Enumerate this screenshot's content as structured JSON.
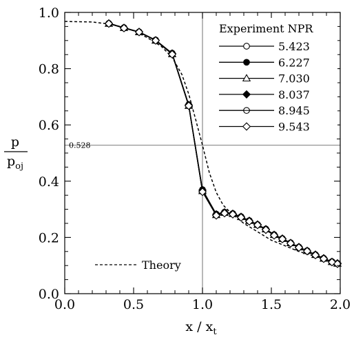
{
  "chart_data": {
    "type": "line",
    "xlabel": "x / x",
    "xlabel_sub": "t",
    "ylabel_numerator": "p",
    "ylabel_denominator": "p",
    "ylabel_denominator_sub": "oj",
    "xlim": [
      0.0,
      2.0
    ],
    "ylim": [
      0.0,
      1.0
    ],
    "x_ticks": [
      0.0,
      0.5,
      1.0,
      1.5,
      2.0
    ],
    "x_tick_labels": [
      "0.0",
      "0.5",
      "1.0",
      "1.5",
      "2.0"
    ],
    "y_ticks": [
      0.0,
      0.2,
      0.4,
      0.6,
      0.8,
      1.0
    ],
    "y_tick_labels": [
      "0.0",
      "0.2",
      "0.4",
      "0.6",
      "0.8",
      "1.0"
    ],
    "grid": false,
    "legend_title": "Experiment NPR",
    "legend_position": "top-right",
    "reference_lines": [
      {
        "orientation": "horizontal",
        "value": 0.528,
        "label": "0.528"
      },
      {
        "orientation": "vertical",
        "value": 1.0,
        "label": ""
      }
    ],
    "theory": {
      "name": "Theory",
      "style": "dashed",
      "x": [
        0.0,
        0.2,
        0.35,
        0.5,
        0.6,
        0.7,
        0.78,
        0.85,
        0.9,
        0.95,
        1.0,
        1.05,
        1.1,
        1.15,
        1.2,
        1.3,
        1.4,
        1.5,
        1.6,
        1.7,
        1.8,
        1.9,
        1.98
      ],
      "y": [
        0.968,
        0.966,
        0.957,
        0.935,
        0.91,
        0.88,
        0.84,
        0.78,
        0.71,
        0.62,
        0.528,
        0.43,
        0.36,
        0.315,
        0.29,
        0.25,
        0.22,
        0.19,
        0.17,
        0.15,
        0.135,
        0.12,
        0.108
      ]
    },
    "series": [
      {
        "name": "5.423",
        "marker": "circle-open",
        "x": [
          0.32,
          0.43,
          0.54,
          0.66,
          0.78,
          0.9,
          1.0,
          1.1,
          1.16,
          1.22,
          1.28,
          1.34,
          1.4,
          1.46,
          1.52,
          1.58,
          1.64,
          1.7,
          1.76,
          1.82,
          1.88,
          1.94,
          1.98
        ],
        "y": [
          0.96,
          0.945,
          0.93,
          0.9,
          0.853,
          0.67,
          0.363,
          0.28,
          0.287,
          0.283,
          0.272,
          0.258,
          0.245,
          0.228,
          0.208,
          0.195,
          0.18,
          0.165,
          0.152,
          0.138,
          0.125,
          0.113,
          0.107
        ]
      },
      {
        "name": "6.227",
        "marker": "circle-filled",
        "x": [
          0.32,
          0.43,
          0.54,
          0.66,
          0.78,
          0.9,
          1.0,
          1.1,
          1.16,
          1.22,
          1.28,
          1.34,
          1.4,
          1.46,
          1.52,
          1.58,
          1.64,
          1.7,
          1.76,
          1.82,
          1.88,
          1.94,
          1.98
        ],
        "y": [
          0.961,
          0.946,
          0.931,
          0.902,
          0.855,
          0.672,
          0.37,
          0.283,
          0.29,
          0.285,
          0.274,
          0.26,
          0.246,
          0.23,
          0.21,
          0.196,
          0.181,
          0.166,
          0.153,
          0.139,
          0.126,
          0.114,
          0.108
        ]
      },
      {
        "name": "7.030",
        "marker": "triangle-open",
        "x": [
          0.32,
          0.43,
          0.54,
          0.66,
          0.78,
          0.9,
          1.0,
          1.1,
          1.16,
          1.22,
          1.28,
          1.34,
          1.4,
          1.46,
          1.52,
          1.58,
          1.64,
          1.7,
          1.76,
          1.82,
          1.88,
          1.94,
          1.98
        ],
        "y": [
          0.96,
          0.945,
          0.93,
          0.9,
          0.852,
          0.668,
          0.365,
          0.28,
          0.288,
          0.284,
          0.273,
          0.259,
          0.245,
          0.229,
          0.209,
          0.195,
          0.18,
          0.165,
          0.152,
          0.138,
          0.125,
          0.113,
          0.107
        ]
      },
      {
        "name": "8.037",
        "marker": "diamond-filled",
        "x": [
          0.32,
          0.43,
          0.54,
          0.66,
          0.78,
          0.9,
          1.0,
          1.1,
          1.16,
          1.22,
          1.28,
          1.34,
          1.4,
          1.46,
          1.52,
          1.58,
          1.64,
          1.7,
          1.76,
          1.82,
          1.88,
          1.94,
          1.98
        ],
        "y": [
          0.961,
          0.945,
          0.931,
          0.901,
          0.854,
          0.671,
          0.368,
          0.282,
          0.289,
          0.284,
          0.273,
          0.259,
          0.246,
          0.229,
          0.209,
          0.196,
          0.18,
          0.166,
          0.152,
          0.139,
          0.126,
          0.113,
          0.108
        ]
      },
      {
        "name": "8.945",
        "marker": "circle-line",
        "x": [
          0.32,
          0.43,
          0.54,
          0.66,
          0.78,
          0.9,
          1.0,
          1.1,
          1.16,
          1.22,
          1.28,
          1.34,
          1.4,
          1.46,
          1.52,
          1.58,
          1.64,
          1.7,
          1.76,
          1.82,
          1.88,
          1.94,
          1.98
        ],
        "y": [
          0.96,
          0.944,
          0.93,
          0.9,
          0.852,
          0.669,
          0.364,
          0.279,
          0.287,
          0.283,
          0.272,
          0.258,
          0.244,
          0.228,
          0.208,
          0.194,
          0.179,
          0.165,
          0.151,
          0.137,
          0.124,
          0.112,
          0.106
        ]
      },
      {
        "name": "9.543",
        "marker": "diamond-open",
        "x": [
          0.32,
          0.43,
          0.54,
          0.66,
          0.78,
          0.9,
          1.0,
          1.1,
          1.16,
          1.22,
          1.28,
          1.34,
          1.4,
          1.46,
          1.52,
          1.58,
          1.64,
          1.7,
          1.76,
          1.82,
          1.88,
          1.94,
          1.98
        ],
        "y": [
          0.96,
          0.944,
          0.93,
          0.9,
          0.851,
          0.668,
          0.362,
          0.278,
          0.286,
          0.282,
          0.271,
          0.257,
          0.244,
          0.227,
          0.207,
          0.194,
          0.179,
          0.164,
          0.151,
          0.137,
          0.124,
          0.112,
          0.106
        ]
      }
    ]
  }
}
